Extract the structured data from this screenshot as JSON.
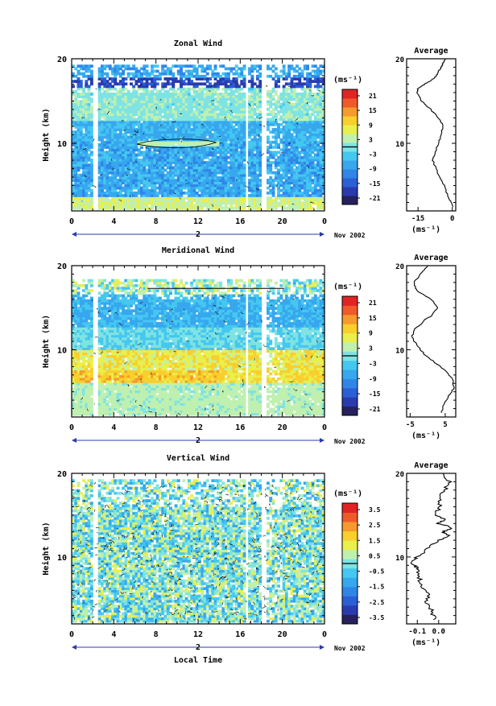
{
  "figure": {
    "xlabel": "Local Time",
    "date_label": "Nov 2002",
    "day_label": "2"
  },
  "chart_data": [
    {
      "type": "heatmap",
      "title": "Zonal Wind",
      "xlabel": "Local Time",
      "ylabel": "Height (km)",
      "xlim": [
        0,
        24
      ],
      "ylim": [
        2,
        20
      ],
      "x_ticks": [
        "0",
        "4",
        "8",
        "12",
        "16",
        "20",
        "0"
      ],
      "y_ticks": [
        "20",
        "10"
      ],
      "colorbar": {
        "unit": "(ms⁻¹)",
        "ticks": [
          "21",
          "15",
          "9",
          "3",
          "-3",
          "-9",
          "-15",
          "-21"
        ],
        "range": [
          -24,
          24
        ]
      },
      "pattern": "zonal",
      "gaps": [
        [
          2.2,
          2.5
        ],
        [
          16.5,
          16.7
        ],
        [
          18.0,
          18.5
        ]
      ],
      "profile": {
        "title": "Average",
        "xlabel": "(ms⁻¹)",
        "x_ticks": [
          "-15",
          "0"
        ],
        "y_ticks": [
          "20",
          "10"
        ],
        "xlim": [
          -20,
          1.5
        ],
        "heights": [
          2.5,
          3.5,
          5,
          6.5,
          8,
          9,
          10,
          11,
          12,
          13,
          14,
          15,
          16,
          16.5,
          17,
          17.5,
          18,
          18.5,
          19,
          19.5,
          20
        ],
        "values": [
          0.5,
          -1.5,
          -3.5,
          -6.5,
          -8.5,
          -7.5,
          -6,
          -5,
          -4,
          -6,
          -9.5,
          -13.5,
          -15.5,
          -15,
          -12,
          -9,
          -7,
          -6,
          -5,
          -4,
          -3
        ]
      }
    },
    {
      "type": "heatmap",
      "title": "Meridional Wind",
      "xlabel": "Local Time",
      "ylabel": "Height (km)",
      "xlim": [
        0,
        24
      ],
      "ylim": [
        2,
        20
      ],
      "x_ticks": [
        "0",
        "4",
        "8",
        "12",
        "16",
        "20",
        "0"
      ],
      "y_ticks": [
        "20",
        "10"
      ],
      "colorbar": {
        "unit": "(ms⁻¹)",
        "ticks": [
          "21",
          "15",
          "9",
          "3",
          "-3",
          "-9",
          "-15",
          "-21"
        ],
        "range": [
          -24,
          24
        ]
      },
      "pattern": "meridional",
      "gaps": [
        [
          2.2,
          2.5
        ],
        [
          16.5,
          16.7
        ],
        [
          18.0,
          18.5
        ]
      ],
      "profile": {
        "title": "Average",
        "xlabel": "(ms⁻¹)",
        "x_ticks": [
          "-5",
          "5"
        ],
        "y_ticks": [
          "20",
          "10"
        ],
        "xlim": [
          -6,
          8
        ],
        "heights": [
          2.5,
          3.5,
          4.5,
          5.5,
          6.5,
          7.5,
          8.5,
          9.5,
          10.5,
          11.5,
          12.5,
          13,
          13.5,
          14,
          15,
          16,
          17,
          18,
          19,
          20
        ],
        "values": [
          4,
          4.5,
          6,
          7.5,
          7,
          5,
          2,
          -1,
          -3,
          -4.5,
          -3.5,
          -2,
          -1,
          1,
          3,
          1,
          -3,
          -4,
          -2,
          0
        ]
      }
    },
    {
      "type": "heatmap",
      "title": "Vertical Wind",
      "xlabel": "Local Time",
      "ylabel": "Height (km)",
      "xlim": [
        0,
        24
      ],
      "ylim": [
        2,
        20
      ],
      "x_ticks": [
        "0",
        "4",
        "8",
        "12",
        "16",
        "20",
        "0"
      ],
      "y_ticks": [
        "20",
        "10"
      ],
      "colorbar": {
        "unit": "(ms⁻¹)",
        "ticks": [
          "3.5",
          "2.5",
          "1.5",
          "0.5",
          "-0.5",
          "-1.5",
          "-2.5",
          "-3.5"
        ],
        "range": [
          -4,
          4
        ]
      },
      "pattern": "vertical",
      "gaps": [
        [
          2.2,
          2.5
        ],
        [
          16.5,
          16.7
        ],
        [
          18.0,
          18.5
        ]
      ],
      "profile": {
        "title": "Average",
        "xlabel": "(ms⁻¹)",
        "x_ticks": [
          "-0.1",
          "0.0"
        ],
        "y_ticks": [
          "20",
          "10"
        ],
        "xlim": [
          -0.15,
          0.08
        ],
        "heights": [
          2.5,
          3.5,
          4.5,
          5.5,
          6.5,
          7.5,
          8.5,
          9,
          9.5,
          10,
          11,
          12,
          12.5,
          13,
          13.5,
          14,
          14.5,
          15,
          16,
          17,
          18,
          19,
          20
        ],
        "values": [
          -0.02,
          -0.03,
          -0.06,
          -0.05,
          -0.08,
          -0.09,
          -0.1,
          -0.11,
          -0.13,
          -0.1,
          -0.05,
          0.0,
          0.05,
          0.02,
          0.06,
          0.0,
          0.03,
          -0.02,
          0.01,
          0.0,
          0.03,
          0.05,
          0.02
        ]
      }
    }
  ]
}
